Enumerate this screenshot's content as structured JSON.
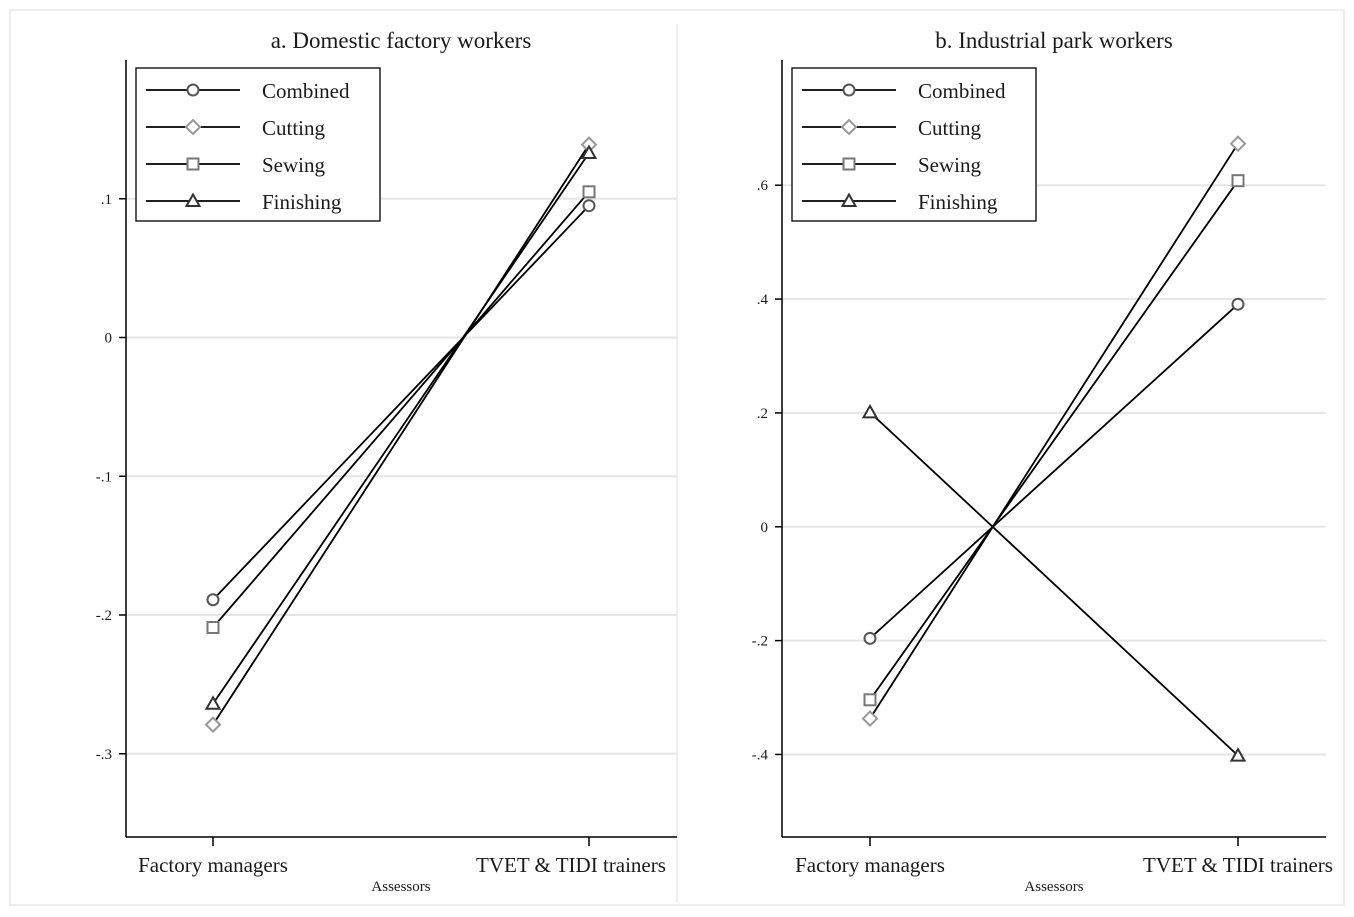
{
  "chart_data": [
    {
      "type": "line",
      "title": "a. Domestic factory workers",
      "xlabel": "Assessors",
      "ylabel": "",
      "categories": [
        "Factory managers",
        "TVET & TIDI trainers"
      ],
      "ylim": [
        -0.36,
        0.2
      ],
      "yticks": [
        0.1,
        0,
        -0.1,
        -0.2,
        -0.3
      ],
      "ytick_labels": [
        ".1",
        "0",
        "-.1",
        "-.2",
        "-.3"
      ],
      "grid": true,
      "legend_position": "top-left",
      "series": [
        {
          "name": "Combined",
          "marker": "circle",
          "color": "#555555",
          "values": [
            -0.189,
            0.095
          ]
        },
        {
          "name": "Cutting",
          "marker": "diamond",
          "color": "#999999",
          "values": [
            -0.279,
            0.139
          ]
        },
        {
          "name": "Sewing",
          "marker": "square",
          "color": "#777777",
          "values": [
            -0.209,
            0.105
          ]
        },
        {
          "name": "Finishing",
          "marker": "triangle",
          "color": "#333333",
          "values": [
            -0.264,
            0.133
          ]
        }
      ]
    },
    {
      "type": "line",
      "title": "b. Industrial park workers",
      "xlabel": "Assessors",
      "ylabel": "",
      "categories": [
        "Factory managers",
        "TVET & TIDI trainers"
      ],
      "ylim": [
        -0.545,
        0.82
      ],
      "yticks": [
        0.6,
        0.4,
        0.2,
        0,
        -0.2,
        -0.4
      ],
      "ytick_labels": [
        ".6",
        ".4",
        ".2",
        "0",
        "-.2",
        "-.4"
      ],
      "grid": true,
      "legend_position": "top-left",
      "series": [
        {
          "name": "Combined",
          "marker": "circle",
          "color": "#555555",
          "values": [
            -0.196,
            0.391
          ]
        },
        {
          "name": "Cutting",
          "marker": "diamond",
          "color": "#999999",
          "values": [
            -0.337,
            0.673
          ]
        },
        {
          "name": "Sewing",
          "marker": "square",
          "color": "#777777",
          "values": [
            -0.304,
            0.608
          ]
        },
        {
          "name": "Finishing",
          "marker": "triangle",
          "color": "#333333",
          "values": [
            0.201,
            -0.402
          ]
        }
      ]
    }
  ]
}
